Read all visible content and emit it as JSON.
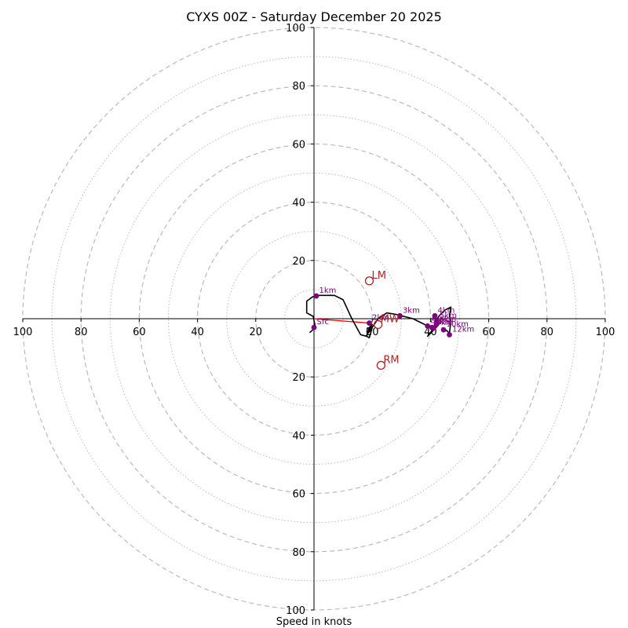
{
  "chart_data": {
    "type": "hodograph",
    "title": "CYXS 00Z - Saturday December 20 2025",
    "xlabel": "Speed in knots",
    "range": [
      -100,
      100
    ],
    "rings_major": [
      20,
      40,
      60,
      80,
      100
    ],
    "rings_minor": [
      10,
      30,
      50,
      70,
      90
    ],
    "x_tick_labels": [
      {
        "v": -100,
        "t": "100"
      },
      {
        "v": -80,
        "t": "80"
      },
      {
        "v": -60,
        "t": "60"
      },
      {
        "v": -40,
        "t": "40"
      },
      {
        "v": -20,
        "t": "20"
      },
      {
        "v": 20,
        "t": "20"
      },
      {
        "v": 40,
        "t": "40"
      },
      {
        "v": 60,
        "t": "60"
      },
      {
        "v": 80,
        "t": "80"
      },
      {
        "v": 100,
        "t": "100"
      }
    ],
    "y_tick_labels": [
      {
        "v": 100,
        "t": "100"
      },
      {
        "v": 80,
        "t": "80"
      },
      {
        "v": 60,
        "t": "60"
      },
      {
        "v": 40,
        "t": "40"
      },
      {
        "v": 20,
        "t": "20"
      },
      {
        "v": -20,
        "t": "20"
      },
      {
        "v": -40,
        "t": "40"
      },
      {
        "v": -60,
        "t": "60"
      },
      {
        "v": -80,
        "t": "80"
      },
      {
        "v": -100,
        "t": "100"
      }
    ],
    "x_zero_label": "0",
    "colors": {
      "trace": "#000000",
      "height_point": "#800080",
      "motion": "#b22222",
      "mean_wind": "#ff0000",
      "grid": "#bbbbbb"
    },
    "trace": [
      [
        -1.5,
        -4.8
      ],
      [
        0.5,
        -3.0
      ],
      [
        -0.3,
        0.8
      ],
      [
        -2.5,
        2.0
      ],
      [
        -2.5,
        6.0
      ],
      [
        -0.5,
        7.5
      ],
      [
        1,
        8
      ],
      [
        7,
        8
      ],
      [
        10,
        6.5
      ],
      [
        13,
        0
      ],
      [
        16,
        -5.5
      ],
      [
        18,
        -6
      ],
      [
        19,
        -3
      ],
      [
        20,
        -2
      ],
      [
        18,
        -6
      ],
      [
        19,
        -6.5
      ],
      [
        20,
        -3
      ],
      [
        21,
        -1.5
      ],
      [
        22,
        0
      ],
      [
        25,
        2
      ],
      [
        28,
        1.5
      ],
      [
        30,
        1
      ],
      [
        34,
        0
      ],
      [
        38,
        -2
      ],
      [
        41,
        -3.5
      ],
      [
        39,
        -6
      ],
      [
        42,
        -3
      ],
      [
        43,
        -1.5
      ],
      [
        42,
        -0.5
      ],
      [
        43,
        1
      ],
      [
        44,
        2
      ],
      [
        45,
        3
      ],
      [
        47,
        4
      ],
      [
        46.5,
        1
      ],
      [
        47,
        -1
      ],
      [
        46.5,
        -5
      ],
      [
        45.5,
        -4
      ],
      [
        44.5,
        -4.5
      ],
      [
        44,
        -3
      ]
    ],
    "height_points": [
      {
        "label": "Sfc",
        "u": 0,
        "v": -3
      },
      {
        "label": "1km",
        "u": 0.8,
        "v": 7.8
      },
      {
        "label": "2km",
        "u": 19,
        "v": -1.5
      },
      {
        "label": "3km",
        "u": 29.5,
        "v": 1
      },
      {
        "label": "4km",
        "u": 41.5,
        "v": 1
      },
      {
        "label": "5km",
        "u": 42.2,
        "v": -0.8
      },
      {
        "label": "6km",
        "u": 42,
        "v": -2
      },
      {
        "label": "7km",
        "u": 40.5,
        "v": -3
      },
      {
        "label": "8km",
        "u": 39,
        "v": -2.5
      },
      {
        "label": "9km",
        "u": 41,
        "v": -3.2
      },
      {
        "label": "10km",
        "u": 44.5,
        "v": -3.8
      },
      {
        "label": "12km",
        "u": 46.5,
        "v": -5.5
      }
    ],
    "motion_markers": [
      {
        "label": "LM",
        "u": 19,
        "v": 13
      },
      {
        "label": "RM",
        "u": 23,
        "v": -16
      },
      {
        "label": "MW",
        "u": 22,
        "v": -2
      }
    ],
    "mean_wind_vector": {
      "from": [
        0,
        0
      ],
      "to": [
        19,
        -1.5
      ]
    }
  }
}
